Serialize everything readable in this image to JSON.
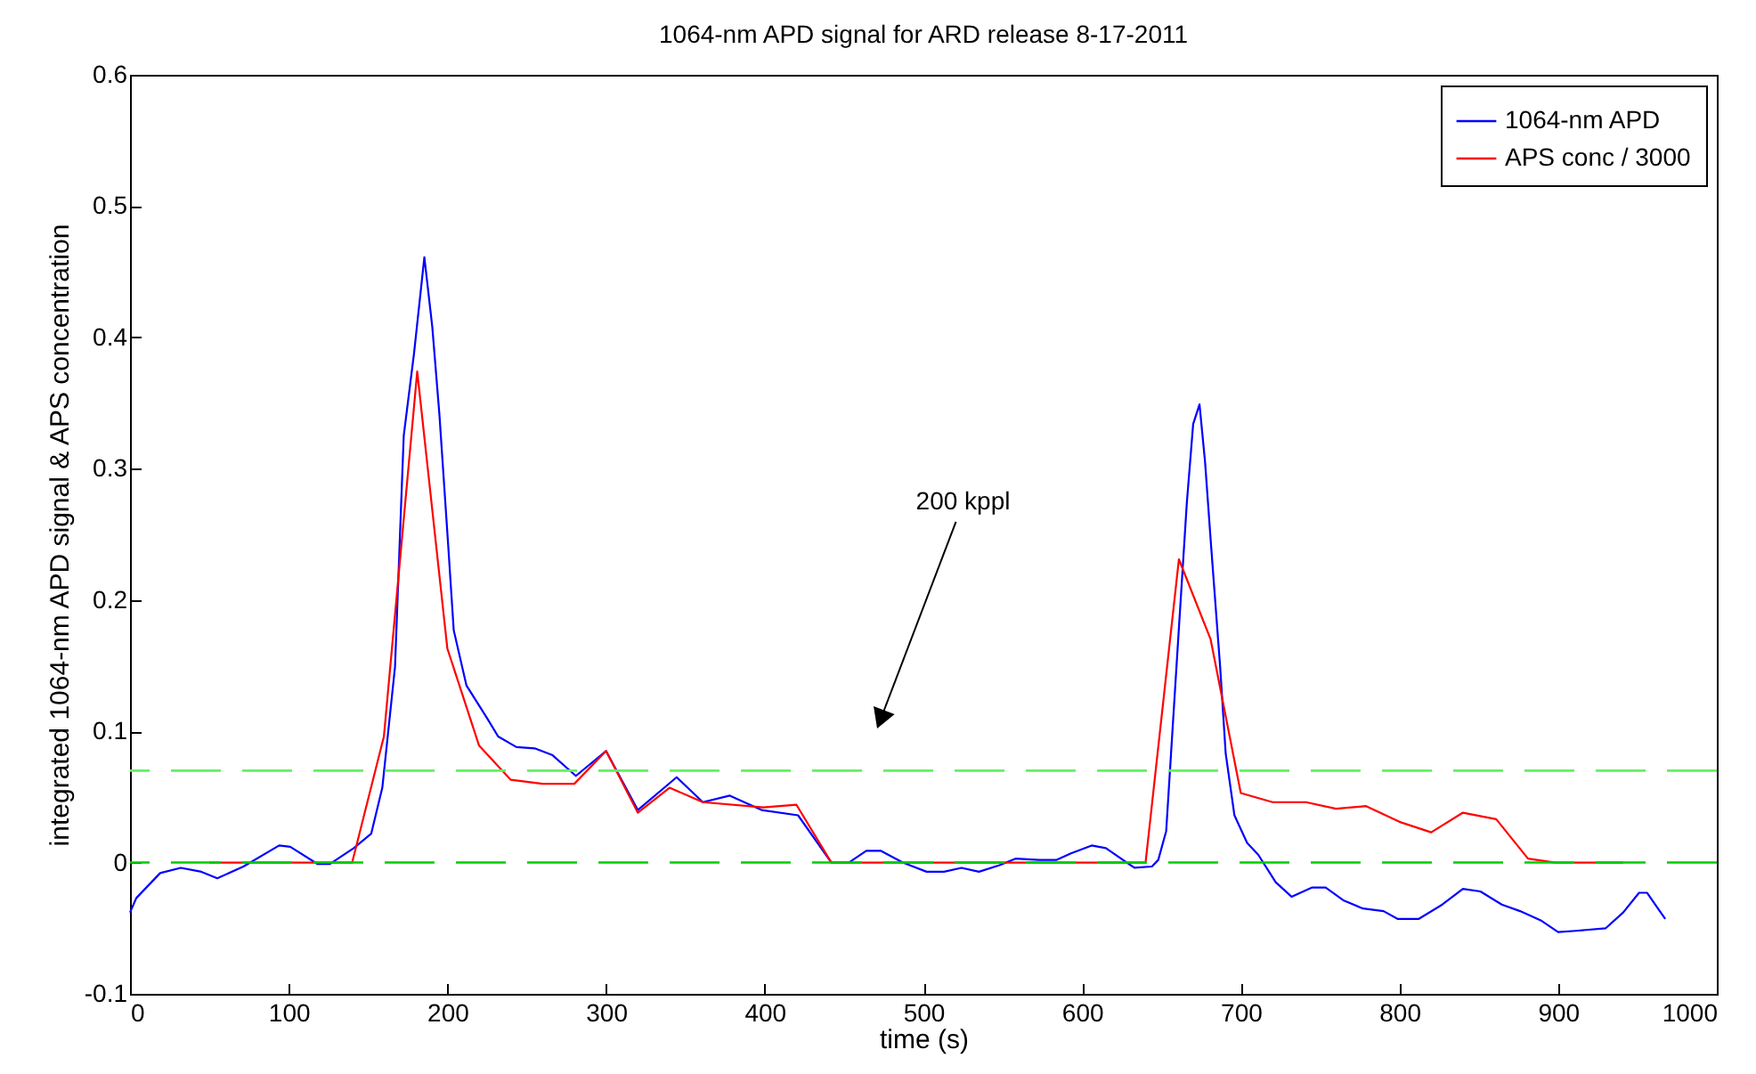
{
  "chart_data": {
    "type": "line",
    "title": "1064-nm APD signal for ARD release 8-17-2011",
    "xlabel": "time (s)",
    "ylabel": "integrated 1064-nm APD signal & APS concentration",
    "xlim": [
      0,
      1000
    ],
    "xticks": [
      0,
      100,
      200,
      300,
      400,
      500,
      600,
      700,
      800,
      900,
      1000
    ],
    "ylim": [
      -0.1,
      0.6
    ],
    "yticks": [
      -0.1,
      0,
      0.1,
      0.2,
      0.3,
      0.4,
      0.5,
      0.6
    ],
    "grid": false,
    "legend": "top right",
    "line_style": "solid",
    "marker": "none",
    "series": [
      {
        "name": "1064-nm APD",
        "color": "#0000ff",
        "x": [
          0,
          4,
          19,
          32,
          45,
          55,
          71.5,
          94,
          101,
          118,
          126,
          141,
          152,
          159,
          167,
          172.5,
          179,
          185.5,
          190.5,
          195,
          200.5,
          204,
          212,
          225,
          232,
          243.5,
          255,
          266,
          281,
          300,
          320,
          344.5,
          361,
          378,
          398,
          421,
          442,
          453,
          464,
          473,
          487,
          502,
          513,
          524,
          535,
          548,
          558,
          573,
          584,
          593,
          606,
          615,
          633,
          644,
          648,
          653,
          659,
          666,
          670,
          674,
          677.5,
          681,
          687,
          690.5,
          696,
          704,
          711,
          722,
          732,
          745,
          753.5,
          765,
          777,
          790,
          799,
          812,
          827,
          840,
          851,
          864.5,
          876,
          889,
          900,
          911,
          930,
          941,
          951,
          956,
          967.5
        ],
        "values": [
          -0.038,
          -0.027,
          -0.008,
          -0.004,
          -0.007,
          -0.012,
          -0.003,
          0.013,
          0.012,
          -0.001,
          -0.001,
          0.011,
          0.022,
          0.057,
          0.149,
          0.325,
          0.388,
          0.461,
          0.408,
          0.341,
          0.242,
          0.177,
          0.135,
          0.11,
          0.096,
          0.088,
          0.087,
          0.082,
          0.066,
          0.085,
          0.04,
          0.065,
          0.046,
          0.051,
          0.04,
          0.036,
          0,
          0,
          0.009,
          0.009,
          0,
          -0.007,
          -0.007,
          -0.004,
          -0.007,
          -0.002,
          0.003,
          0.002,
          0.002,
          0.007,
          0.013,
          0.011,
          -0.004,
          -0.003,
          0.002,
          0.024,
          0.14,
          0.274,
          0.334,
          0.349,
          0.305,
          0.246,
          0.149,
          0.083,
          0.036,
          0.015,
          0.006,
          -0.015,
          -0.026,
          -0.019,
          -0.019,
          -0.029,
          -0.035,
          -0.037,
          -0.043,
          -0.043,
          -0.032,
          -0.02,
          -0.022,
          -0.032,
          -0.037,
          -0.044,
          -0.053,
          -0.052,
          -0.05,
          -0.038,
          -0.023,
          -0.023,
          -0.043
        ]
      },
      {
        "name": "APS conc / 3000",
        "color": "#ff0000",
        "x": [
          50,
          140,
          160,
          181,
          200,
          220,
          240,
          260,
          280,
          300,
          320,
          340,
          361,
          399,
          420,
          442,
          640,
          661,
          681,
          700,
          720,
          741,
          760,
          779,
          800,
          820,
          840,
          861,
          881,
          898,
          941
        ],
        "values": [
          0,
          0,
          0.096,
          0.374,
          0.163,
          0.089,
          0.063,
          0.06,
          0.06,
          0.085,
          0.038,
          0.057,
          0.046,
          0.042,
          0.044,
          0,
          0,
          0.231,
          0.17,
          0.053,
          0.046,
          0.046,
          0.041,
          0.043,
          0.031,
          0.023,
          0.038,
          0.033,
          0.003,
          0,
          0
        ]
      }
    ],
    "ref_lines": [
      {
        "axis": "y",
        "value": 0.07,
        "color": "#66ee66",
        "line_style": "dashed"
      },
      {
        "axis": "y",
        "value": 0,
        "color": "#00cc00",
        "line_style": "dashed"
      }
    ],
    "annotations": [
      "200 kppl"
    ]
  }
}
